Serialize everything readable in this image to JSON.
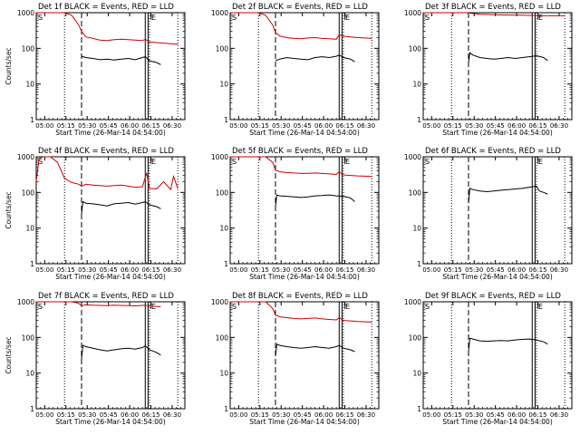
{
  "colors": {
    "events": "#000000",
    "lld": "#cc0000",
    "axes": "#000000"
  },
  "marker_labels": {
    "start": "S",
    "flare": "F",
    "end": "E"
  },
  "chart_data": [
    {
      "type": "line",
      "title": "Det 1f BLACK = Events, RED = LLD",
      "xlabel": "Start Time (26-Mar-14 04:54:00)",
      "ylabel": "Counts/sec",
      "ylog": true,
      "ylim": [
        1,
        1000
      ],
      "yticks": [
        "1",
        "10",
        "100",
        "1000"
      ],
      "xlim": [
        0,
        105
      ],
      "xticks": [
        "05:00",
        "05:15",
        "05:30",
        "05:45",
        "06:00",
        "06:15",
        "06:30"
      ],
      "xtick_minutes": [
        6,
        21,
        36,
        51,
        66,
        81,
        96
      ],
      "markers": {
        "dotted": [
          20,
          80,
          100
        ],
        "dashed": [
          32
        ],
        "solid": [
          77,
          79
        ]
      },
      "series": [
        {
          "name": "LLD",
          "color": "#cc0000",
          "x": [
            0,
            5,
            10,
            15,
            20,
            25,
            30,
            32,
            35,
            40,
            45,
            50,
            55,
            60,
            65,
            70,
            75,
            77,
            80,
            85,
            90,
            95,
            100
          ],
          "y": [
            1000,
            1000,
            1000,
            1000,
            1000,
            850,
            450,
            300,
            210,
            190,
            170,
            165,
            175,
            180,
            175,
            170,
            165,
            180,
            150,
            145,
            140,
            135,
            130
          ]
        },
        {
          "name": "Events",
          "color": "#000000",
          "x": [
            32,
            35,
            40,
            45,
            50,
            55,
            60,
            65,
            70,
            75,
            77,
            80,
            85,
            88
          ],
          "y": [
            60,
            55,
            52,
            48,
            50,
            47,
            50,
            52,
            48,
            55,
            58,
            45,
            40,
            35
          ]
        }
      ]
    },
    {
      "type": "line",
      "title": "Det 2f BLACK = Events, RED = LLD",
      "xlabel": "Start Time (26-Mar-14 04:54:00)",
      "ylabel": "",
      "ylog": true,
      "ylim": [
        1,
        1000
      ],
      "yticks": [
        "1",
        "10",
        "100",
        "1000"
      ],
      "xlim": [
        0,
        105
      ],
      "xticks": [
        "05:00",
        "05:15",
        "05:30",
        "05:45",
        "06:00",
        "06:15",
        "06:30"
      ],
      "xtick_minutes": [
        6,
        21,
        36,
        51,
        66,
        81,
        96
      ],
      "markers": {
        "dotted": [
          20,
          80,
          100
        ],
        "dashed": [
          32
        ],
        "solid": [
          77,
          79
        ]
      },
      "series": [
        {
          "name": "LLD",
          "color": "#cc0000",
          "x": [
            0,
            5,
            10,
            15,
            20,
            25,
            30,
            32,
            35,
            40,
            45,
            50,
            55,
            60,
            65,
            70,
            75,
            77,
            80,
            85,
            90,
            95,
            100
          ],
          "y": [
            1000,
            1000,
            1000,
            1000,
            1000,
            850,
            450,
            280,
            220,
            200,
            190,
            185,
            195,
            200,
            190,
            185,
            180,
            240,
            220,
            210,
            200,
            195,
            190
          ]
        },
        {
          "name": "Events",
          "color": "#000000",
          "x": [
            32,
            35,
            40,
            45,
            50,
            55,
            60,
            65,
            70,
            75,
            77,
            80,
            85,
            88
          ],
          "y": [
            45,
            50,
            55,
            52,
            50,
            48,
            55,
            58,
            55,
            60,
            65,
            55,
            50,
            42
          ]
        }
      ]
    },
    {
      "type": "line",
      "title": "Det 3f BLACK = Events, RED = LLD",
      "xlabel": "Start Time (26-Mar-14 04:54:00)",
      "ylabel": "",
      "ylog": true,
      "ylim": [
        1,
        1000
      ],
      "yticks": [
        "1",
        "10",
        "100",
        "1000"
      ],
      "xlim": [
        0,
        105
      ],
      "xticks": [
        "05:00",
        "05:15",
        "05:30",
        "05:45",
        "06:00",
        "06:15",
        "06:30"
      ],
      "xtick_minutes": [
        6,
        21,
        36,
        51,
        66,
        81,
        96
      ],
      "markers": {
        "dotted": [
          20,
          80,
          100
        ],
        "dashed": [
          32
        ],
        "solid": [
          77,
          79
        ]
      },
      "series": [
        {
          "name": "LLD",
          "color": "#cc0000",
          "x": [
            0,
            10,
            20,
            30,
            40,
            50,
            60,
            70,
            77,
            80,
            90,
            100
          ],
          "y": [
            1000,
            1000,
            1000,
            1000,
            900,
            880,
            860,
            850,
            840,
            830,
            820,
            820
          ]
        },
        {
          "name": "Events",
          "color": "#000000",
          "x": [
            32,
            33,
            35,
            40,
            45,
            50,
            55,
            60,
            65,
            70,
            75,
            80,
            85,
            88
          ],
          "y": [
            40,
            75,
            65,
            55,
            52,
            50,
            52,
            55,
            52,
            55,
            58,
            62,
            55,
            45
          ]
        }
      ]
    },
    {
      "type": "line",
      "title": "Det 4f BLACK = Events, RED = LLD",
      "xlabel": "Start Time (26-Mar-14 04:54:00)",
      "ylabel": "Counts/sec",
      "ylog": true,
      "ylim": [
        1,
        1000
      ],
      "yticks": [
        "1",
        "10",
        "100",
        "1000"
      ],
      "xlim": [
        0,
        105
      ],
      "xticks": [
        "05:00",
        "05:15",
        "05:30",
        "05:45",
        "06:00",
        "06:15",
        "06:30"
      ],
      "xtick_minutes": [
        6,
        21,
        36,
        51,
        66,
        81,
        96
      ],
      "markers": {
        "dotted": [
          20,
          80,
          100
        ],
        "dashed": [
          32
        ],
        "solid": [
          77,
          79
        ]
      },
      "series": [
        {
          "name": "LLD",
          "color": "#cc0000",
          "x": [
            0,
            2,
            5,
            8,
            10,
            15,
            20,
            25,
            30,
            32,
            35,
            40,
            45,
            50,
            55,
            60,
            65,
            70,
            75,
            78,
            80,
            85,
            90,
            95,
            97,
            100
          ],
          "y": [
            200,
            900,
            1000,
            1000,
            1000,
            700,
            250,
            190,
            170,
            150,
            170,
            160,
            155,
            150,
            155,
            160,
            150,
            140,
            145,
            350,
            130,
            125,
            200,
            120,
            280,
            130
          ]
        },
        {
          "name": "Events",
          "color": "#000000",
          "x": [
            32,
            33,
            35,
            40,
            45,
            50,
            55,
            60,
            65,
            70,
            75,
            77,
            80,
            85,
            88
          ],
          "y": [
            25,
            55,
            50,
            48,
            45,
            42,
            48,
            50,
            52,
            47,
            52,
            55,
            45,
            40,
            35
          ]
        }
      ]
    },
    {
      "type": "line",
      "title": "Det 5f BLACK = Events, RED = LLD",
      "xlabel": "Start Time (26-Mar-14 04:54:00)",
      "ylabel": "",
      "ylog": true,
      "ylim": [
        1,
        1000
      ],
      "yticks": [
        "1",
        "10",
        "100",
        "1000"
      ],
      "xlim": [
        0,
        105
      ],
      "xticks": [
        "05:00",
        "05:15",
        "05:30",
        "05:45",
        "06:00",
        "06:15",
        "06:30"
      ],
      "xtick_minutes": [
        6,
        21,
        36,
        51,
        66,
        81,
        96
      ],
      "markers": {
        "dotted": [
          20,
          80,
          100
        ],
        "dashed": [
          32
        ],
        "solid": [
          77,
          79
        ]
      },
      "series": [
        {
          "name": "LLD",
          "color": "#cc0000",
          "x": [
            0,
            10,
            20,
            25,
            30,
            32,
            35,
            40,
            45,
            50,
            55,
            60,
            65,
            70,
            75,
            77,
            80,
            85,
            90,
            95,
            100
          ],
          "y": [
            1000,
            1000,
            1000,
            1000,
            700,
            420,
            380,
            360,
            350,
            340,
            345,
            350,
            340,
            330,
            320,
            380,
            310,
            300,
            290,
            285,
            280
          ]
        },
        {
          "name": "Events",
          "color": "#000000",
          "x": [
            32,
            33,
            35,
            40,
            45,
            50,
            55,
            60,
            65,
            70,
            75,
            80,
            85,
            88
          ],
          "y": [
            40,
            85,
            80,
            78,
            75,
            72,
            75,
            80,
            82,
            85,
            80,
            78,
            70,
            55
          ]
        }
      ]
    },
    {
      "type": "line",
      "title": "Det 6f BLACK = Events, RED = LLD",
      "xlabel": "Start Time (26-Mar-14 04:54:00)",
      "ylabel": "",
      "ylog": true,
      "ylim": [
        1,
        1000
      ],
      "yticks": [
        "1",
        "10",
        "100",
        "1000"
      ],
      "xlim": [
        0,
        105
      ],
      "xticks": [
        "05:00",
        "05:15",
        "05:30",
        "05:45",
        "06:00",
        "06:15",
        "06:30"
      ],
      "xtick_minutes": [
        6,
        21,
        36,
        51,
        66,
        81,
        96
      ],
      "markers": {
        "dotted": [
          20,
          80,
          100
        ],
        "dashed": [
          32
        ],
        "solid": [
          77,
          79
        ]
      },
      "series": [
        {
          "name": "Events",
          "color": "#000000",
          "x": [
            32,
            33,
            35,
            40,
            45,
            50,
            55,
            60,
            65,
            70,
            75,
            80,
            82,
            85,
            88
          ],
          "y": [
            50,
            130,
            120,
            110,
            105,
            110,
            115,
            120,
            125,
            130,
            140,
            150,
            110,
            100,
            90
          ]
        }
      ]
    },
    {
      "type": "line",
      "title": "Det 7f BLACK = Events, RED = LLD",
      "xlabel": "Start Time (26-Mar-14 04:54:00)",
      "ylabel": "Counts/sec",
      "ylog": true,
      "ylim": [
        1,
        1000
      ],
      "yticks": [
        "1",
        "10",
        "100",
        "1000"
      ],
      "xlim": [
        0,
        105
      ],
      "xticks": [
        "05:00",
        "05:15",
        "05:30",
        "05:45",
        "06:00",
        "06:15",
        "06:30"
      ],
      "xtick_minutes": [
        6,
        21,
        36,
        51,
        66,
        81,
        96
      ],
      "markers": {
        "dotted": [
          20,
          80,
          100
        ],
        "dashed": [
          32
        ],
        "solid": [
          77,
          79
        ]
      },
      "series": [
        {
          "name": "LLD",
          "color": "#cc0000",
          "x": [
            0,
            10,
            20,
            25,
            28,
            30,
            32,
            35,
            40,
            45,
            50,
            55,
            60,
            65,
            70,
            75,
            77,
            80,
            85,
            88
          ],
          "y": [
            1000,
            1000,
            1000,
            1000,
            950,
            900,
            780,
            820,
            800,
            790,
            780,
            800,
            790,
            780,
            770,
            790,
            800,
            760,
            740,
            720
          ]
        },
        {
          "name": "Events",
          "color": "#000000",
          "x": [
            32,
            33,
            35,
            40,
            45,
            50,
            55,
            60,
            65,
            70,
            75,
            77,
            80,
            85,
            88
          ],
          "y": [
            25,
            60,
            55,
            50,
            45,
            42,
            45,
            48,
            50,
            47,
            52,
            58,
            45,
            38,
            32
          ]
        }
      ]
    },
    {
      "type": "line",
      "title": "Det 8f BLACK = Events, RED = LLD",
      "xlabel": "Start Time (26-Mar-14 04:54:00)",
      "ylabel": "",
      "ylog": true,
      "ylim": [
        1,
        1000
      ],
      "yticks": [
        "1",
        "10",
        "100",
        "1000"
      ],
      "xlim": [
        0,
        105
      ],
      "xticks": [
        "05:00",
        "05:15",
        "05:30",
        "05:45",
        "06:00",
        "06:15",
        "06:30"
      ],
      "xtick_minutes": [
        6,
        21,
        36,
        51,
        66,
        81,
        96
      ],
      "markers": {
        "dotted": [
          20,
          80,
          100
        ],
        "dashed": [
          32
        ],
        "solid": [
          77,
          79
        ]
      },
      "series": [
        {
          "name": "LLD",
          "color": "#cc0000",
          "x": [
            0,
            10,
            20,
            25,
            30,
            32,
            35,
            40,
            45,
            50,
            55,
            60,
            65,
            70,
            75,
            77,
            80,
            85,
            90,
            95,
            100
          ],
          "y": [
            1000,
            1000,
            1000,
            1000,
            650,
            420,
            380,
            360,
            340,
            330,
            340,
            350,
            330,
            320,
            310,
            360,
            300,
            290,
            280,
            275,
            270
          ]
        },
        {
          "name": "Events",
          "color": "#000000",
          "x": [
            32,
            33,
            35,
            40,
            45,
            50,
            55,
            60,
            65,
            70,
            75,
            77,
            80,
            85,
            88
          ],
          "y": [
            30,
            65,
            60,
            55,
            52,
            50,
            52,
            55,
            52,
            50,
            55,
            60,
            50,
            45,
            40
          ]
        }
      ]
    },
    {
      "type": "line",
      "title": "Det 9f BLACK = Events, RED = LLD",
      "xlabel": "Start Time (26-Mar-14 04:54:00)",
      "ylabel": "",
      "ylog": true,
      "ylim": [
        1,
        1000
      ],
      "yticks": [
        "1",
        "10",
        "100",
        "1000"
      ],
      "xlim": [
        0,
        105
      ],
      "xticks": [
        "05:00",
        "05:15",
        "05:30",
        "05:45",
        "06:00",
        "06:15",
        "06:30"
      ],
      "xtick_minutes": [
        6,
        21,
        36,
        51,
        66,
        81,
        96
      ],
      "markers": {
        "dotted": [
          20,
          80,
          100
        ],
        "dashed": [
          32
        ],
        "solid": [
          77,
          79
        ]
      },
      "series": [
        {
          "name": "Events",
          "color": "#000000",
          "x": [
            32,
            33,
            35,
            40,
            45,
            50,
            55,
            60,
            65,
            70,
            75,
            80,
            85,
            88
          ],
          "y": [
            40,
            95,
            90,
            80,
            78,
            80,
            82,
            80,
            85,
            88,
            90,
            85,
            75,
            65
          ]
        }
      ]
    }
  ]
}
